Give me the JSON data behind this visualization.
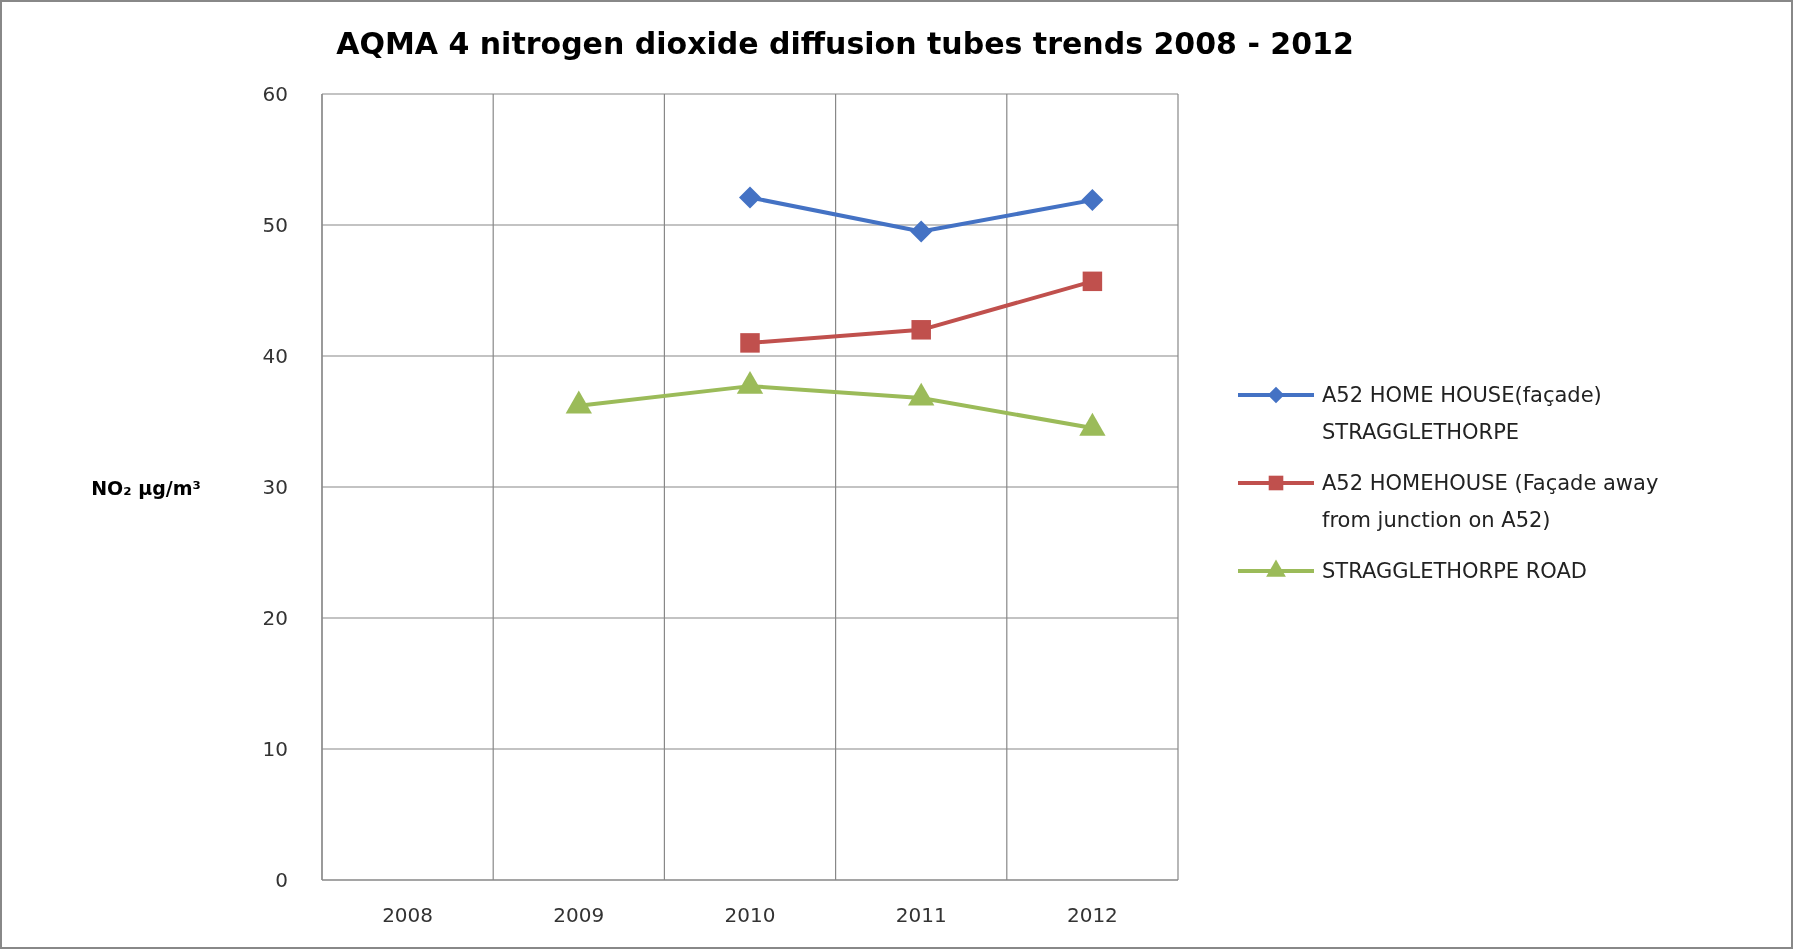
{
  "chart_data": {
    "type": "line",
    "title": "AQMA 4 nitrogen dioxide diffusion tubes trends 2008 - 2012",
    "ylabel": "NO₂ μg/m³",
    "categories": [
      "2008",
      "2009",
      "2010",
      "2011",
      "2012"
    ],
    "series": [
      {
        "name": "A52 HOME HOUSE(façade) STRAGGLETHORPE",
        "color": "#4472c4",
        "marker": "diamond",
        "values": [
          null,
          null,
          52.1,
          49.5,
          51.9
        ]
      },
      {
        "name": "A52 HOMEHOUSE (Façade away from junction on A52)",
        "color": "#c0504d",
        "marker": "square",
        "values": [
          null,
          null,
          41.0,
          42.0,
          45.7
        ]
      },
      {
        "name": "STRAGGLETHORPE ROAD",
        "color": "#9bbb59",
        "marker": "triangle",
        "values": [
          null,
          36.2,
          37.7,
          36.8,
          34.5
        ]
      }
    ],
    "ylim": [
      0,
      60
    ],
    "yticks": [
      0,
      10,
      20,
      30,
      40,
      50,
      60
    ],
    "grid": true,
    "legend": "right",
    "line_style": "solid"
  }
}
